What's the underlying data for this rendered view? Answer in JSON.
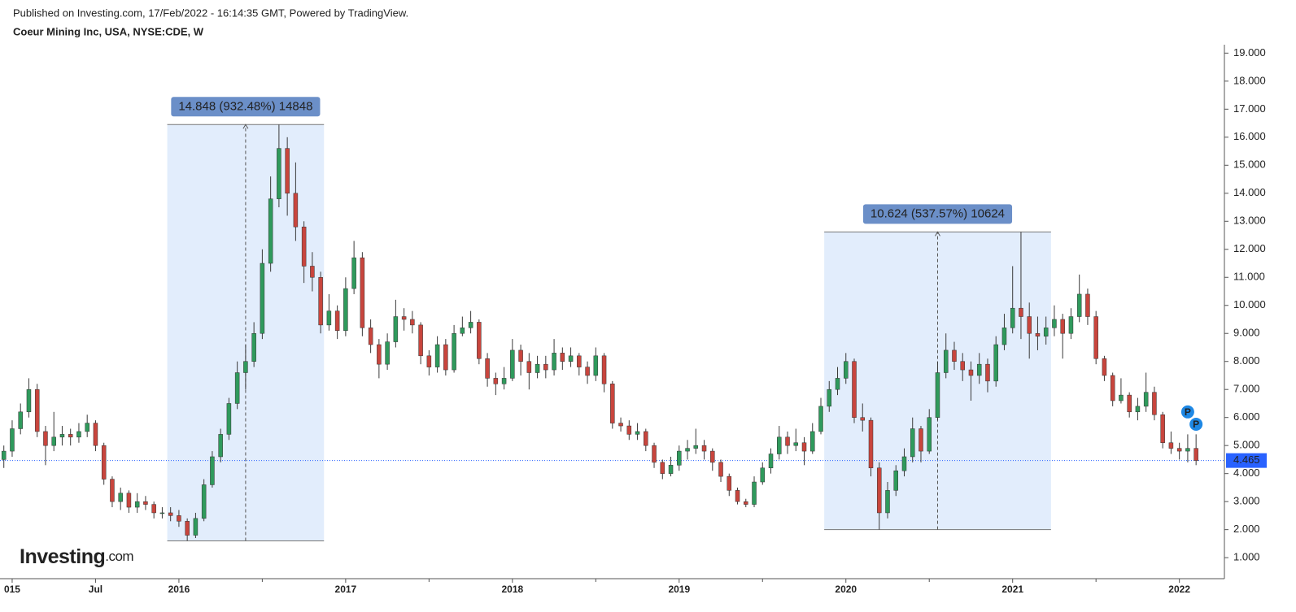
{
  "header": {
    "published": "Published on Investing.com, 17/Feb/2022 - 16:14:35 GMT, Powered by TradingView.",
    "symbol": "Coeur Mining Inc, USA, NYSE:CDE, W"
  },
  "logo": {
    "name": "Investing",
    "suffix": ".com"
  },
  "chart_data": {
    "type": "candlestick",
    "up_color": "#2f9a5c",
    "down_color": "#c8453d",
    "wick_color": "#3a3a3a",
    "xlim": [
      2014.927,
      2022.27
    ],
    "ylim": [
      0.25,
      19.3
    ],
    "xticks": [
      {
        "value": 2015,
        "label": "015"
      },
      {
        "value": 2015.5,
        "label": "Jul"
      },
      2016,
      2017,
      2018,
      2019,
      2020,
      2021,
      2022
    ],
    "xminor": [
      2016.5,
      2017.5,
      2018.5,
      2019.5,
      2020.5,
      2021.5
    ],
    "yticks": [
      {
        "value": 1,
        "label": "1.000"
      },
      {
        "value": 2,
        "label": "2.000"
      },
      {
        "value": 3,
        "label": "3.000"
      },
      {
        "value": 4,
        "label": "4.000"
      },
      {
        "value": 5,
        "label": "5.000"
      },
      {
        "value": 6,
        "label": "6.000"
      },
      {
        "value": 7,
        "label": "7.000"
      },
      {
        "value": 8,
        "label": "8.000"
      },
      {
        "value": 9,
        "label": "9.000"
      },
      {
        "value": 10,
        "label": "10.000"
      },
      {
        "value": 11,
        "label": "11.000"
      },
      {
        "value": 12,
        "label": "12.000"
      },
      {
        "value": 13,
        "label": "13.000"
      },
      {
        "value": 14,
        "label": "14.000"
      },
      {
        "value": 15,
        "label": "15.000"
      },
      {
        "value": 16,
        "label": "16.000"
      },
      {
        "value": 17,
        "label": "17.000"
      },
      {
        "value": 18,
        "label": "18.000"
      },
      {
        "value": 19,
        "label": "19.000"
      }
    ],
    "last_price": 4.465,
    "last_price_color": "#2962ff",
    "x": [
      2014.95,
      2015,
      2015.05,
      2015.1,
      2015.15,
      2015.2,
      2015.25,
      2015.3,
      2015.35,
      2015.4,
      2015.45,
      2015.5,
      2015.55,
      2015.6,
      2015.65,
      2015.7,
      2015.75,
      2015.8,
      2015.85,
      2015.9,
      2015.95,
      2016,
      2016.05,
      2016.1,
      2016.15,
      2016.2,
      2016.25,
      2016.3,
      2016.35,
      2016.4,
      2016.45,
      2016.5,
      2016.55,
      2016.6,
      2016.65,
      2016.7,
      2016.75,
      2016.8,
      2016.85,
      2016.9,
      2016.95,
      2017,
      2017.05,
      2017.1,
      2017.15,
      2017.2,
      2017.25,
      2017.3,
      2017.35,
      2017.4,
      2017.45,
      2017.5,
      2017.55,
      2017.6,
      2017.65,
      2017.7,
      2017.75,
      2017.8,
      2017.85,
      2017.9,
      2017.95,
      2018,
      2018.05,
      2018.1,
      2018.15,
      2018.2,
      2018.25,
      2018.3,
      2018.35,
      2018.4,
      2018.45,
      2018.5,
      2018.55,
      2018.6,
      2018.65,
      2018.7,
      2018.75,
      2018.8,
      2018.85,
      2018.9,
      2018.95,
      2019,
      2019.05,
      2019.1,
      2019.15,
      2019.2,
      2019.25,
      2019.3,
      2019.35,
      2019.4,
      2019.45,
      2019.5,
      2019.55,
      2019.6,
      2019.65,
      2019.7,
      2019.75,
      2019.8,
      2019.85,
      2019.9,
      2019.95,
      2020,
      2020.05,
      2020.1,
      2020.15,
      2020.2,
      2020.25,
      2020.3,
      2020.35,
      2020.4,
      2020.45,
      2020.5,
      2020.55,
      2020.6,
      2020.65,
      2020.7,
      2020.75,
      2020.8,
      2020.85,
      2020.9,
      2020.95,
      2021,
      2021.05,
      2021.1,
      2021.15,
      2021.2,
      2021.25,
      2021.3,
      2021.35,
      2021.4,
      2021.45,
      2021.5,
      2021.55,
      2021.6,
      2021.65,
      2021.7,
      2021.75,
      2021.8,
      2021.85,
      2021.9,
      2021.95,
      2022,
      2022.05,
      2022.1
    ],
    "ohlc": [
      [
        4.5,
        5.0,
        4.2,
        4.8
      ],
      [
        4.8,
        5.9,
        4.6,
        5.6
      ],
      [
        5.6,
        6.5,
        5.4,
        6.2
      ],
      [
        6.2,
        7.4,
        6.0,
        7.0
      ],
      [
        7.0,
        7.2,
        5.3,
        5.5
      ],
      [
        5.5,
        5.7,
        4.3,
        5.0
      ],
      [
        5.0,
        6.2,
        4.8,
        5.3
      ],
      [
        5.3,
        5.7,
        5.0,
        5.4
      ],
      [
        5.4,
        5.6,
        5.0,
        5.3
      ],
      [
        5.3,
        5.8,
        5.1,
        5.5
      ],
      [
        5.5,
        6.1,
        5.3,
        5.8
      ],
      [
        5.8,
        5.9,
        4.8,
        5.0
      ],
      [
        5.0,
        5.1,
        3.6,
        3.8
      ],
      [
        3.8,
        3.9,
        2.8,
        3.0
      ],
      [
        3.0,
        3.5,
        2.7,
        3.3
      ],
      [
        3.3,
        3.4,
        2.6,
        2.8
      ],
      [
        2.8,
        3.3,
        2.6,
        3.0
      ],
      [
        3.0,
        3.2,
        2.7,
        2.9
      ],
      [
        2.9,
        3.0,
        2.4,
        2.6
      ],
      [
        2.6,
        2.8,
        2.4,
        2.6
      ],
      [
        2.6,
        2.8,
        2.3,
        2.5
      ],
      [
        2.5,
        2.7,
        2.1,
        2.3
      ],
      [
        2.3,
        2.4,
        1.6,
        1.8
      ],
      [
        1.8,
        2.6,
        1.7,
        2.4
      ],
      [
        2.4,
        3.8,
        2.3,
        3.6
      ],
      [
        3.6,
        4.8,
        3.5,
        4.6
      ],
      [
        4.6,
        5.6,
        4.4,
        5.4
      ],
      [
        5.4,
        6.7,
        5.2,
        6.5
      ],
      [
        6.5,
        8.0,
        6.3,
        7.6
      ],
      [
        7.6,
        8.6,
        7.0,
        8.0
      ],
      [
        8.0,
        9.4,
        7.8,
        9.0
      ],
      [
        9.0,
        12.0,
        8.8,
        11.5
      ],
      [
        11.5,
        14.6,
        11.2,
        13.8
      ],
      [
        13.8,
        16.45,
        13.5,
        15.6
      ],
      [
        15.6,
        16.0,
        13.2,
        14.0
      ],
      [
        14.0,
        15.1,
        12.3,
        12.8
      ],
      [
        12.8,
        13.0,
        10.8,
        11.4
      ],
      [
        11.4,
        11.9,
        10.5,
        11.0
      ],
      [
        11.0,
        11.2,
        9.0,
        9.3
      ],
      [
        9.3,
        10.4,
        9.1,
        9.8
      ],
      [
        9.8,
        10.0,
        8.8,
        9.1
      ],
      [
        9.1,
        11.0,
        8.9,
        10.6
      ],
      [
        10.6,
        12.3,
        10.4,
        11.7
      ],
      [
        11.7,
        11.9,
        8.9,
        9.2
      ],
      [
        9.2,
        9.5,
        8.3,
        8.6
      ],
      [
        8.6,
        8.8,
        7.4,
        7.9
      ],
      [
        7.9,
        9.0,
        7.7,
        8.7
      ],
      [
        8.7,
        10.2,
        8.5,
        9.6
      ],
      [
        9.6,
        9.9,
        9.1,
        9.5
      ],
      [
        9.5,
        9.8,
        9.0,
        9.3
      ],
      [
        9.3,
        9.4,
        7.9,
        8.2
      ],
      [
        8.2,
        8.4,
        7.5,
        7.8
      ],
      [
        7.8,
        8.9,
        7.6,
        8.6
      ],
      [
        8.6,
        8.8,
        7.5,
        7.7
      ],
      [
        7.7,
        9.3,
        7.6,
        9.0
      ],
      [
        9.0,
        9.6,
        8.9,
        9.2
      ],
      [
        9.2,
        9.8,
        9.0,
        9.4
      ],
      [
        9.4,
        9.5,
        7.9,
        8.1
      ],
      [
        8.1,
        8.3,
        7.1,
        7.4
      ],
      [
        7.4,
        7.6,
        6.8,
        7.2
      ],
      [
        7.2,
        7.8,
        7.0,
        7.4
      ],
      [
        7.4,
        8.8,
        7.3,
        8.4
      ],
      [
        8.4,
        8.6,
        7.5,
        8.0
      ],
      [
        8.0,
        8.3,
        7.0,
        7.6
      ],
      [
        7.6,
        8.2,
        7.4,
        7.9
      ],
      [
        7.9,
        8.2,
        7.4,
        7.7
      ],
      [
        7.7,
        8.8,
        7.5,
        8.3
      ],
      [
        8.3,
        8.5,
        7.7,
        8.0
      ],
      [
        8.0,
        8.5,
        7.8,
        8.2
      ],
      [
        8.2,
        8.3,
        7.5,
        7.8
      ],
      [
        7.8,
        8.0,
        7.2,
        7.5
      ],
      [
        7.5,
        8.5,
        7.3,
        8.2
      ],
      [
        8.2,
        8.3,
        6.9,
        7.2
      ],
      [
        7.2,
        7.3,
        5.6,
        5.8
      ],
      [
        5.8,
        6.0,
        5.5,
        5.7
      ],
      [
        5.7,
        5.9,
        5.2,
        5.4
      ],
      [
        5.4,
        5.8,
        5.2,
        5.5
      ],
      [
        5.5,
        5.6,
        4.8,
        5.0
      ],
      [
        5.0,
        5.1,
        4.2,
        4.4
      ],
      [
        4.4,
        4.5,
        3.8,
        4.0
      ],
      [
        4.0,
        4.6,
        3.9,
        4.3
      ],
      [
        4.3,
        5.0,
        4.1,
        4.8
      ],
      [
        4.8,
        5.2,
        4.5,
        4.9
      ],
      [
        4.9,
        5.6,
        4.7,
        5.0
      ],
      [
        5.0,
        5.2,
        4.5,
        4.8
      ],
      [
        4.8,
        4.9,
        4.1,
        4.4
      ],
      [
        4.4,
        4.5,
        3.7,
        3.9
      ],
      [
        3.9,
        4.0,
        3.2,
        3.4
      ],
      [
        3.4,
        3.5,
        2.9,
        3.0
      ],
      [
        3.0,
        3.1,
        2.8,
        2.9
      ],
      [
        2.9,
        3.9,
        2.8,
        3.7
      ],
      [
        3.7,
        4.4,
        3.6,
        4.2
      ],
      [
        4.2,
        4.9,
        4.0,
        4.7
      ],
      [
        4.7,
        5.7,
        4.5,
        5.3
      ],
      [
        5.3,
        5.5,
        4.7,
        5.0
      ],
      [
        5.0,
        5.6,
        4.8,
        5.1
      ],
      [
        5.1,
        5.3,
        4.3,
        4.8
      ],
      [
        4.8,
        5.8,
        4.7,
        5.5
      ],
      [
        5.5,
        6.7,
        5.4,
        6.4
      ],
      [
        6.4,
        7.3,
        6.2,
        7.0
      ],
      [
        7.0,
        7.8,
        6.8,
        7.4
      ],
      [
        7.4,
        8.3,
        7.2,
        8.0
      ],
      [
        8.0,
        8.1,
        5.8,
        6.0
      ],
      [
        6.0,
        6.5,
        5.5,
        5.9
      ],
      [
        5.9,
        6.0,
        3.9,
        4.2
      ],
      [
        4.2,
        4.4,
        2.0,
        2.6
      ],
      [
        2.6,
        3.7,
        2.4,
        3.4
      ],
      [
        3.4,
        4.3,
        3.2,
        4.1
      ],
      [
        4.1,
        4.9,
        3.9,
        4.6
      ],
      [
        4.6,
        6.0,
        4.4,
        5.6
      ],
      [
        5.6,
        5.7,
        4.4,
        4.8
      ],
      [
        4.8,
        6.3,
        4.7,
        6.0
      ],
      [
        6.0,
        8.0,
        5.9,
        7.6
      ],
      [
        7.6,
        9.0,
        7.4,
        8.4
      ],
      [
        8.4,
        8.7,
        7.7,
        8.0
      ],
      [
        8.0,
        8.3,
        7.3,
        7.7
      ],
      [
        7.7,
        8.0,
        6.6,
        7.5
      ],
      [
        7.5,
        8.3,
        7.2,
        7.9
      ],
      [
        7.9,
        8.1,
        6.9,
        7.3
      ],
      [
        7.3,
        8.9,
        7.1,
        8.6
      ],
      [
        8.6,
        9.7,
        8.4,
        9.2
      ],
      [
        9.2,
        11.4,
        9.0,
        9.9
      ],
      [
        9.9,
        12.62,
        8.8,
        9.6
      ],
      [
        9.6,
        10.1,
        8.1,
        9.0
      ],
      [
        9.0,
        9.6,
        8.4,
        8.9
      ],
      [
        8.9,
        9.6,
        8.6,
        9.2
      ],
      [
        9.2,
        10.0,
        8.9,
        9.5
      ],
      [
        9.5,
        9.7,
        8.1,
        9.0
      ],
      [
        9.0,
        9.9,
        8.8,
        9.6
      ],
      [
        9.6,
        11.1,
        9.4,
        10.4
      ],
      [
        10.4,
        10.6,
        9.3,
        9.6
      ],
      [
        9.6,
        9.8,
        7.9,
        8.1
      ],
      [
        8.1,
        8.2,
        7.3,
        7.5
      ],
      [
        7.5,
        7.6,
        6.4,
        6.6
      ],
      [
        6.6,
        7.4,
        6.5,
        6.8
      ],
      [
        6.8,
        6.9,
        6.0,
        6.2
      ],
      [
        6.2,
        6.7,
        5.9,
        6.4
      ],
      [
        6.4,
        7.6,
        6.2,
        6.9
      ],
      [
        6.9,
        7.1,
        5.9,
        6.1
      ],
      [
        6.1,
        6.2,
        4.9,
        5.1
      ],
      [
        5.1,
        5.5,
        4.7,
        4.9
      ],
      [
        4.9,
        5.1,
        4.5,
        4.8
      ],
      [
        4.8,
        5.4,
        4.4,
        4.9
      ],
      [
        4.9,
        5.4,
        4.3,
        4.465
      ]
    ],
    "measures": [
      {
        "x0": 2015.93,
        "x1": 2016.87,
        "y0": 1.6,
        "y1": 16.45,
        "label": "14.848 (932.48%) 14848"
      },
      {
        "x0": 2019.87,
        "x1": 2021.23,
        "y0": 2.0,
        "y1": 12.62,
        "label": "10.624 (537.57%) 10624"
      }
    ],
    "markers": [
      {
        "x": 2022.05,
        "y": 6.2,
        "label": "P"
      },
      {
        "x": 2022.1,
        "y": 5.76,
        "label": "P"
      }
    ]
  }
}
